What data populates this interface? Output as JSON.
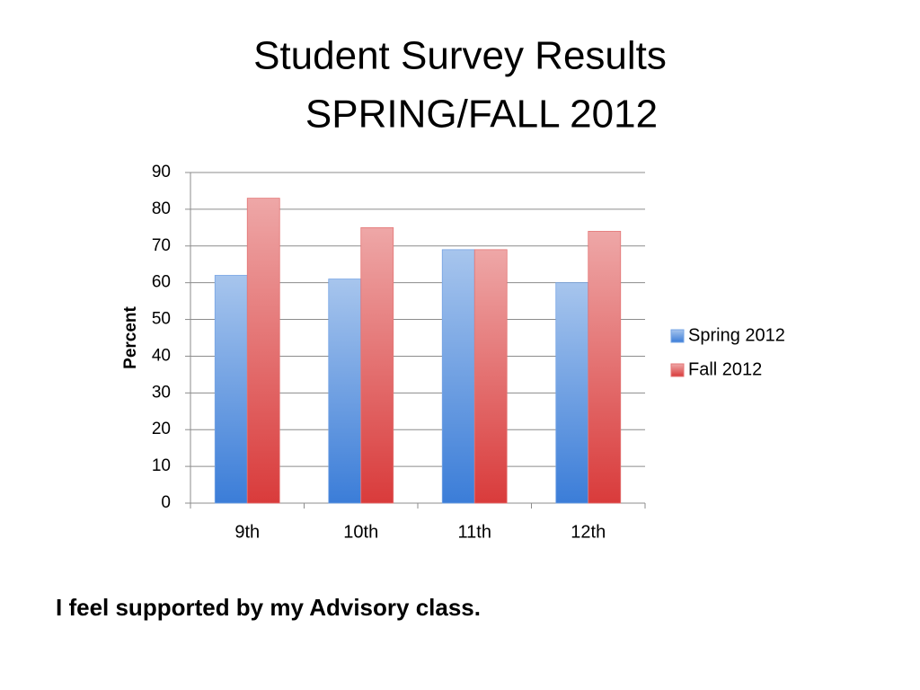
{
  "chart_data": {
    "type": "bar",
    "title": "Student Survey Results",
    "subtitle": "SPRING/FALL 2012",
    "annotation": "I feel supported by my Advisory class.",
    "y_label": "Percent",
    "categories": [
      "9th",
      "10th",
      "11th",
      "12th"
    ],
    "series": [
      {
        "name": "Spring 2012",
        "color": "#3b7dd8",
        "values": [
          62,
          61,
          69,
          60
        ]
      },
      {
        "name": "Fall 2012",
        "color": "#d93b3b",
        "values": [
          83,
          75,
          69,
          74
        ]
      }
    ],
    "ylim": [
      0,
      90
    ],
    "yticks": [
      0,
      10,
      20,
      30,
      40,
      50,
      60,
      70,
      80,
      90
    ],
    "grid": true,
    "legend": "right"
  }
}
